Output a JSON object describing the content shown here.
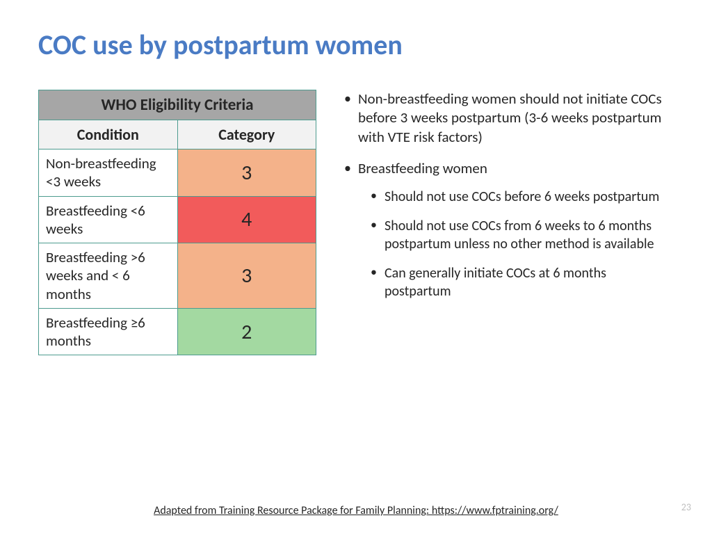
{
  "title": "COC use by postpartum women",
  "table": {
    "title": "WHO Eligibility Criteria",
    "headers": {
      "condition": "Condition",
      "category": "Category"
    },
    "rows": [
      {
        "condition": "Non-breastfeeding <3 weeks",
        "category": "3",
        "color": "#f4b28a"
      },
      {
        "condition": "Breastfeeding <6 weeks",
        "category": "4",
        "color": "#f25b5b"
      },
      {
        "condition": "Breastfeeding >6 weeks and < 6 months",
        "category": "3",
        "color": "#f4b28a"
      },
      {
        "condition": "Breastfeeding ≥6 months",
        "category": "2",
        "color": "#a3d9a1"
      }
    ],
    "border_color": "#4d9b8f",
    "title_bg": "#a6a6a6",
    "header_bg": "#f2f2f2"
  },
  "bullets": {
    "b1": "Non-breastfeeding women should not initiate COCs before 3 weeks postpartum (3-6 weeks postpartum with VTE risk factors)",
    "b2": "Breastfeeding women",
    "b2_sub": {
      "s1": "Should not use COCs before 6 weeks postpartum",
      "s2": "Should not use COCs from 6 weeks to 6 months postpartum unless no other method is available",
      "s3": "Can generally initiate COCs at 6 months postpartum"
    }
  },
  "footer": "Adapted from Training Resource Package for Family Planning: https://www.fptraining.org/",
  "page_number": "23",
  "colors": {
    "title_color": "#4a7bc4",
    "page_num_color": "#bfbfbf"
  }
}
